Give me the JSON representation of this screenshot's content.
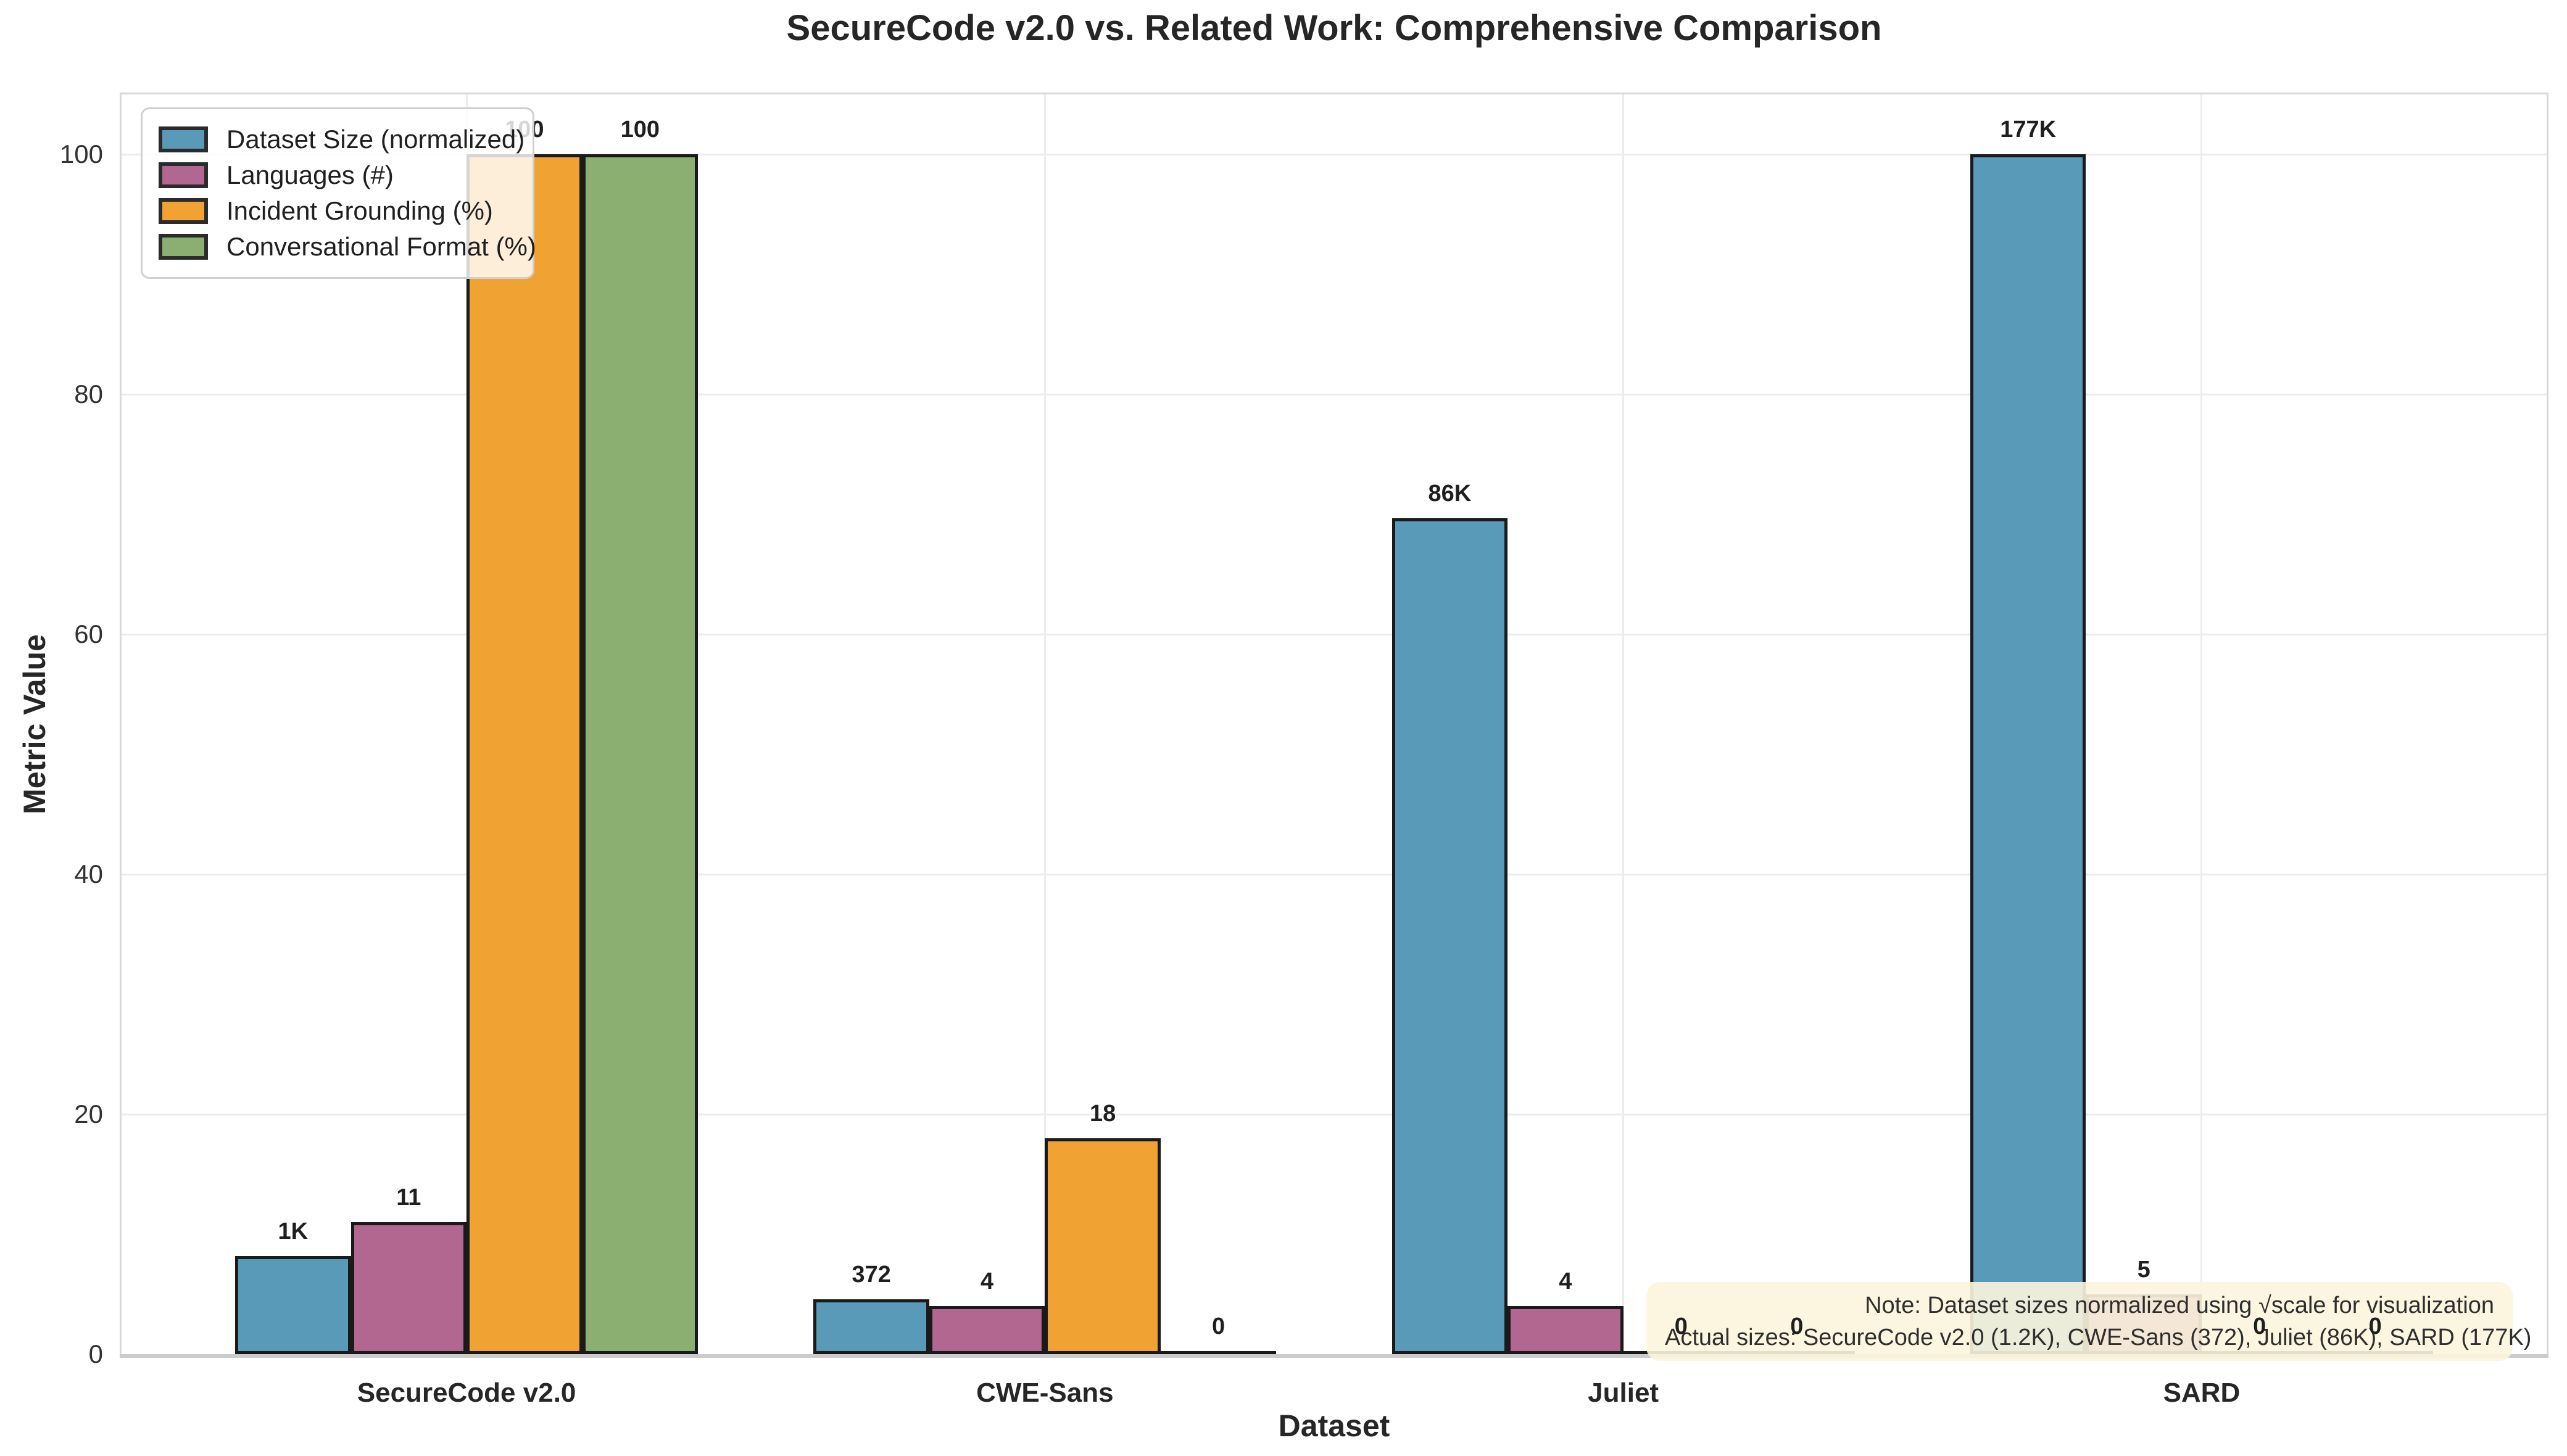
{
  "chart_data": {
    "type": "bar",
    "title": "SecureCode v2.0 vs. Related Work: Comprehensive Comparison",
    "xlabel": "Dataset",
    "ylabel": "Metric Value",
    "categories": [
      "SecureCode v2.0",
      "CWE-Sans",
      "Juliet",
      "SARD"
    ],
    "series": [
      {
        "name": "Dataset Size (normalized)",
        "color": "#589ab8",
        "values": [
          8.2,
          4.6,
          69.7,
          100
        ],
        "bar_labels": [
          "1K",
          "372",
          "86K",
          "177K"
        ]
      },
      {
        "name": "Languages (#)",
        "color": "#b16790",
        "values": [
          11,
          4,
          4,
          5
        ],
        "bar_labels": [
          "11",
          "4",
          "4",
          "5"
        ]
      },
      {
        "name": "Incident Grounding (%)",
        "color": "#f0a233",
        "values": [
          100,
          18,
          0,
          0
        ],
        "bar_labels": [
          "100",
          "18",
          "0",
          "0"
        ]
      },
      {
        "name": "Conversational Format (%)",
        "color": "#8bae71",
        "values": [
          100,
          0,
          0,
          0
        ],
        "bar_labels": [
          "100",
          "0",
          "0",
          "0"
        ]
      }
    ],
    "ylim": [
      0,
      105
    ],
    "yticks": [
      0,
      20,
      40,
      60,
      80,
      100
    ],
    "grid": true,
    "legend_position": "upper left",
    "note": {
      "line1": "Note: Dataset sizes normalized using √scale for visualization",
      "line2": "Actual sizes: SecureCode v2.0 (1.2K), CWE-Sans (372), Juliet (86K), SARD (177K)"
    },
    "colors": {
      "bar_edge": "#1a1a1a",
      "grid": "#ececec",
      "note_background": "#fcf5de",
      "text": "#262626"
    }
  }
}
